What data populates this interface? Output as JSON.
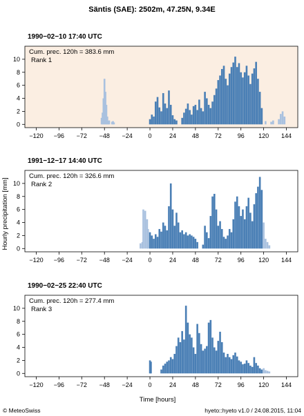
{
  "figure": {
    "title": "Säntis (SAE): 2502m, 47.25N, 9.34E",
    "ylabel": "Hourly precipitation [mm]",
    "xlabel": "Time [hours]",
    "footer_left": "© MeteoSwiss",
    "footer_right": "hyeto::hyeto v1.0 / 24.08.2015, 11:04"
  },
  "colors": {
    "main_bar": "#4a7fb5",
    "outside_bar": "#a9c1df",
    "rank1_background": "#fbeee2",
    "frame": "#000000"
  },
  "chart_data": [
    {
      "type": "bar",
      "title": "1990−02−10 17:40 UTC",
      "annotation_line1": "Cum. prec. 120h = 383.6 mm",
      "annotation_line2": "Rank 1",
      "highlight_window_hours": [
        0,
        120
      ],
      "xlim": [
        -132,
        156
      ],
      "ylim": [
        -0.5,
        12
      ],
      "xticks": [
        -120,
        -96,
        -72,
        -48,
        -24,
        0,
        24,
        48,
        72,
        96,
        120,
        144
      ],
      "yticks": [
        0,
        2,
        4,
        6,
        8,
        10
      ],
      "bars": [
        [
          -51,
          1.0
        ],
        [
          -50,
          1.8
        ],
        [
          -49,
          4.0
        ],
        [
          -48,
          7.0
        ],
        [
          -47,
          5.0
        ],
        [
          -46,
          3.0
        ],
        [
          -45,
          1.2
        ],
        [
          -44,
          0.5
        ],
        [
          -43,
          0.6
        ],
        [
          -40,
          0.4
        ],
        [
          -39,
          0.5
        ],
        [
          -38,
          0.3
        ],
        [
          0,
          0.8
        ],
        [
          2,
          1.5
        ],
        [
          4,
          1.2
        ],
        [
          6,
          3.5
        ],
        [
          8,
          4.2
        ],
        [
          10,
          2.6
        ],
        [
          12,
          2.0
        ],
        [
          14,
          4.8
        ],
        [
          16,
          3.2
        ],
        [
          18,
          2.5
        ],
        [
          20,
          5.2
        ],
        [
          22,
          3.0
        ],
        [
          24,
          1.4
        ],
        [
          26,
          0.8
        ],
        [
          28,
          0.6
        ],
        [
          34,
          1.0
        ],
        [
          36,
          1.8
        ],
        [
          38,
          2.4
        ],
        [
          40,
          3.2
        ],
        [
          42,
          2.2
        ],
        [
          44,
          1.5
        ],
        [
          46,
          2.8
        ],
        [
          48,
          3.0
        ],
        [
          50,
          2.2
        ],
        [
          52,
          3.8
        ],
        [
          54,
          2.5
        ],
        [
          56,
          2.0
        ],
        [
          58,
          5.0
        ],
        [
          60,
          4.0
        ],
        [
          62,
          3.0
        ],
        [
          64,
          2.5
        ],
        [
          66,
          3.5
        ],
        [
          68,
          4.5
        ],
        [
          70,
          5.5
        ],
        [
          72,
          6.8
        ],
        [
          74,
          7.5
        ],
        [
          76,
          8.5
        ],
        [
          78,
          9.0
        ],
        [
          80,
          7.0
        ],
        [
          82,
          6.0
        ],
        [
          84,
          7.8
        ],
        [
          86,
          8.8
        ],
        [
          88,
          9.5
        ],
        [
          90,
          10.4
        ],
        [
          92,
          8.8
        ],
        [
          94,
          9.4
        ],
        [
          96,
          8.0
        ],
        [
          98,
          7.2
        ],
        [
          100,
          8.0
        ],
        [
          102,
          9.0
        ],
        [
          104,
          7.5
        ],
        [
          106,
          6.2
        ],
        [
          108,
          7.8
        ],
        [
          110,
          8.6
        ],
        [
          112,
          9.6
        ],
        [
          114,
          7.0
        ],
        [
          116,
          5.0
        ],
        [
          118,
          2.5
        ],
        [
          122,
          0.5
        ],
        [
          128,
          0.4
        ],
        [
          130,
          0.6
        ],
        [
          136,
          0.8
        ],
        [
          138,
          1.6
        ],
        [
          140,
          2.0
        ],
        [
          142,
          1.2
        ]
      ]
    },
    {
      "type": "bar",
      "title": "1991−12−17 14:40 UTC",
      "annotation_line1": "Cum. prec. 120h = 326.6 mm",
      "annotation_line2": "Rank 2",
      "highlight_window_hours": [
        0,
        120
      ],
      "xlim": [
        -132,
        156
      ],
      "ylim": [
        -0.5,
        12
      ],
      "xticks": [
        -120,
        -96,
        -72,
        -48,
        -24,
        0,
        24,
        48,
        72,
        96,
        120,
        144
      ],
      "yticks": [
        0,
        2,
        4,
        6,
        8,
        10
      ],
      "bars": [
        [
          -10,
          0.8
        ],
        [
          -8,
          1.0
        ],
        [
          -7,
          6.0
        ],
        [
          -5,
          5.8
        ],
        [
          -3,
          4.5
        ],
        [
          -2,
          3.0
        ],
        [
          0,
          2.5
        ],
        [
          2,
          2.0
        ],
        [
          4,
          1.5
        ],
        [
          6,
          2.2
        ],
        [
          8,
          1.8
        ],
        [
          10,
          3.0
        ],
        [
          12,
          2.6
        ],
        [
          14,
          4.0
        ],
        [
          16,
          3.5
        ],
        [
          18,
          2.8
        ],
        [
          20,
          6.5
        ],
        [
          22,
          10.0
        ],
        [
          24,
          6.0
        ],
        [
          26,
          3.5
        ],
        [
          28,
          5.5
        ],
        [
          30,
          4.0
        ],
        [
          32,
          2.5
        ],
        [
          34,
          2.8
        ],
        [
          36,
          2.2
        ],
        [
          38,
          2.5
        ],
        [
          40,
          2.0
        ],
        [
          42,
          2.2
        ],
        [
          44,
          2.0
        ],
        [
          46,
          1.8
        ],
        [
          48,
          1.5
        ],
        [
          50,
          1.0
        ],
        [
          56,
          0.6
        ],
        [
          58,
          3.5
        ],
        [
          60,
          2.5
        ],
        [
          62,
          1.6
        ],
        [
          64,
          5.0
        ],
        [
          66,
          8.0
        ],
        [
          68,
          8.4
        ],
        [
          70,
          6.0
        ],
        [
          72,
          3.5
        ],
        [
          74,
          4.2
        ],
        [
          76,
          3.0
        ],
        [
          78,
          1.8
        ],
        [
          80,
          1.5
        ],
        [
          82,
          2.0
        ],
        [
          84,
          3.0
        ],
        [
          86,
          2.5
        ],
        [
          88,
          4.5
        ],
        [
          90,
          7.2
        ],
        [
          92,
          8.0
        ],
        [
          94,
          6.5
        ],
        [
          96,
          5.0
        ],
        [
          98,
          6.0
        ],
        [
          100,
          4.5
        ],
        [
          102,
          6.5
        ],
        [
          104,
          7.8
        ],
        [
          106,
          5.5
        ],
        [
          108,
          4.2
        ],
        [
          110,
          6.8
        ],
        [
          112,
          8.5
        ],
        [
          114,
          9.5
        ],
        [
          116,
          11.0
        ],
        [
          118,
          9.0
        ],
        [
          120,
          4.0
        ],
        [
          122,
          1.5
        ],
        [
          124,
          1.0
        ],
        [
          126,
          0.5
        ]
      ]
    },
    {
      "type": "bar",
      "title": "1990−02−25 22:40 UTC",
      "annotation_line1": "Cum. prec. 120h = 277.4 mm",
      "annotation_line2": "Rank 3",
      "highlight_window_hours": [
        0,
        120
      ],
      "xlim": [
        -132,
        156
      ],
      "ylim": [
        -0.5,
        12
      ],
      "xticks": [
        -120,
        -96,
        -72,
        -48,
        -24,
        0,
        24,
        48,
        72,
        96,
        120,
        144
      ],
      "yticks": [
        0,
        2,
        4,
        6,
        8,
        10
      ],
      "bars": [
        [
          0,
          2.0
        ],
        [
          1,
          1.8
        ],
        [
          12,
          0.6
        ],
        [
          14,
          1.2
        ],
        [
          16,
          1.5
        ],
        [
          18,
          1.8
        ],
        [
          20,
          2.0
        ],
        [
          22,
          2.5
        ],
        [
          24,
          2.2
        ],
        [
          26,
          3.0
        ],
        [
          28,
          4.2
        ],
        [
          30,
          5.5
        ],
        [
          32,
          4.8
        ],
        [
          34,
          6.5
        ],
        [
          36,
          5.2
        ],
        [
          38,
          10.4
        ],
        [
          40,
          7.8
        ],
        [
          42,
          6.0
        ],
        [
          44,
          5.5
        ],
        [
          46,
          4.0
        ],
        [
          48,
          3.0
        ],
        [
          50,
          7.6
        ],
        [
          52,
          6.2
        ],
        [
          54,
          4.5
        ],
        [
          56,
          3.5
        ],
        [
          58,
          3.8
        ],
        [
          60,
          4.2
        ],
        [
          62,
          7.8
        ],
        [
          64,
          8.2
        ],
        [
          66,
          5.5
        ],
        [
          68,
          4.0
        ],
        [
          70,
          3.5
        ],
        [
          72,
          5.0
        ],
        [
          74,
          6.4
        ],
        [
          76,
          4.8
        ],
        [
          78,
          3.2
        ],
        [
          80,
          2.5
        ],
        [
          82,
          3.0
        ],
        [
          84,
          2.5
        ],
        [
          86,
          2.2
        ],
        [
          88,
          2.8
        ],
        [
          90,
          3.2
        ],
        [
          92,
          2.6
        ],
        [
          94,
          2.0
        ],
        [
          96,
          1.8
        ],
        [
          98,
          1.4
        ],
        [
          100,
          1.5
        ],
        [
          102,
          2.0
        ],
        [
          104,
          1.6
        ],
        [
          106,
          1.2
        ],
        [
          108,
          1.0
        ],
        [
          110,
          2.5
        ],
        [
          112,
          1.6
        ],
        [
          114,
          1.2
        ],
        [
          116,
          0.8
        ],
        [
          118,
          0.6
        ],
        [
          120,
          0.8
        ],
        [
          122,
          0.5
        ],
        [
          124,
          0.4
        ],
        [
          126,
          0.3
        ]
      ]
    }
  ]
}
